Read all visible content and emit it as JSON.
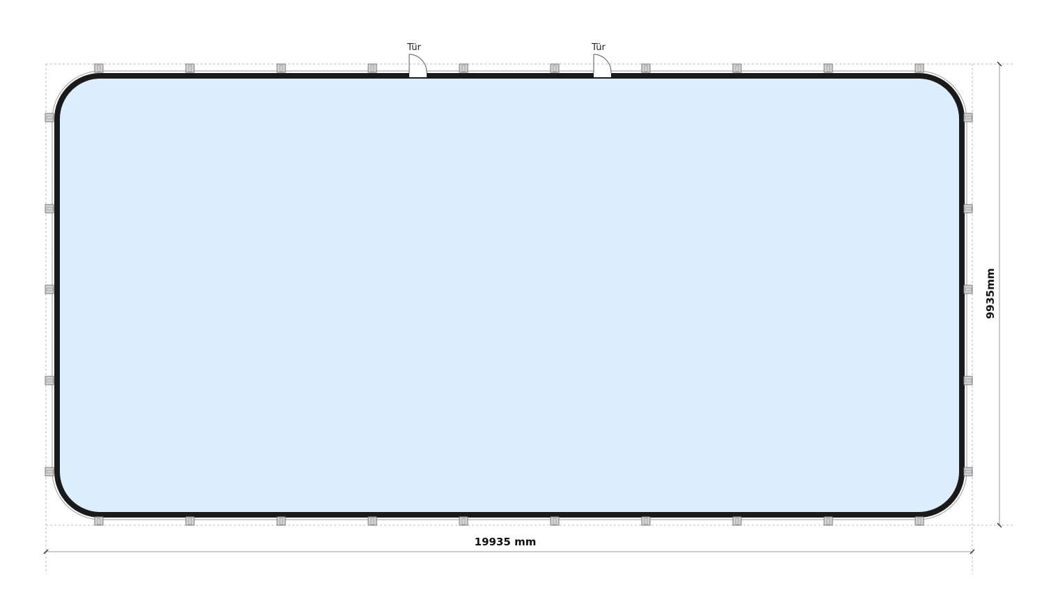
{
  "labels": {
    "doors": [
      "Tür",
      "Tür"
    ],
    "width_dimension": "19935 mm",
    "height_dimension": "9935mm"
  },
  "posts": {
    "top": 10,
    "bottom": 10,
    "left": 5,
    "right": 5
  },
  "colors": {
    "floor": "#dcedfc",
    "wall": "#1a1a1a",
    "post": "#d4d4d4",
    "dimension": "#999999"
  }
}
